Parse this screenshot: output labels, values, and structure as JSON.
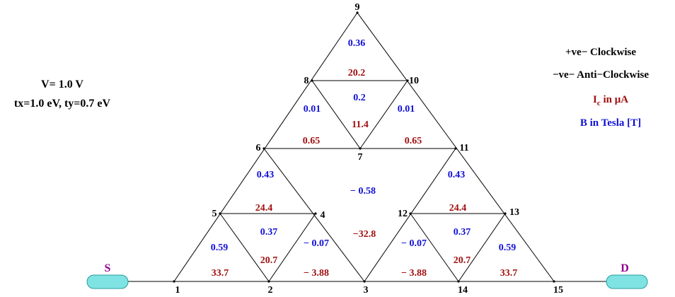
{
  "colors": {
    "current": "#a01010",
    "field": "#1010d8",
    "terminal_label": "#900090",
    "terminal_fill": "#7fe3e3",
    "terminal_stroke": "#2a9c9c",
    "edge": "#000000"
  },
  "params": {
    "voltage": "V= 1.0 V",
    "hopping": "tx=1.0 eV, ty=0.7 eV"
  },
  "legend": {
    "positive": "+ve− Clockwise",
    "negative": "−ve− Anti−Clockwise",
    "current_unit_prefix": "I",
    "current_unit_sub": "c",
    "current_unit_suffix": " in  μA",
    "field_unit": "B in Tesla [T]"
  },
  "terminals": {
    "source": "S",
    "drain": "D"
  },
  "nodes": [
    {
      "id": "1",
      "label": "1"
    },
    {
      "id": "2",
      "label": "2"
    },
    {
      "id": "3",
      "label": "3"
    },
    {
      "id": "4",
      "label": "4"
    },
    {
      "id": "5",
      "label": "5"
    },
    {
      "id": "6",
      "label": "6"
    },
    {
      "id": "7",
      "label": "7"
    },
    {
      "id": "8",
      "label": "8"
    },
    {
      "id": "9",
      "label": "9"
    },
    {
      "id": "10",
      "label": "10"
    },
    {
      "id": "11",
      "label": "11"
    },
    {
      "id": "12",
      "label": "12"
    },
    {
      "id": "13",
      "label": "13"
    },
    {
      "id": "14",
      "label": "14"
    },
    {
      "id": "15",
      "label": "15"
    }
  ],
  "edges": [
    [
      "1",
      "9"
    ],
    [
      "9",
      "15"
    ],
    [
      "1",
      "15"
    ],
    [
      "5",
      "4"
    ],
    [
      "4",
      "2"
    ],
    [
      "2",
      "5"
    ],
    [
      "6",
      "11"
    ],
    [
      "6",
      "3"
    ],
    [
      "3",
      "11"
    ],
    [
      "8",
      "10"
    ],
    [
      "10",
      "7"
    ],
    [
      "7",
      "8"
    ],
    [
      "12",
      "13"
    ],
    [
      "12",
      "14"
    ],
    [
      "14",
      "13"
    ]
  ],
  "loop_currents": [
    {
      "id": "c-left-bottom",
      "value": "33.7"
    },
    {
      "id": "c-left-inner",
      "value": "20.7"
    },
    {
      "id": "c-left-top",
      "value": "24.4"
    },
    {
      "id": "c-inner-left",
      "value": "− 3.88"
    },
    {
      "id": "c-center",
      "value": "−32.8"
    },
    {
      "id": "c-inner-right",
      "value": "− 3.88"
    },
    {
      "id": "c-right-inner",
      "value": "20.7"
    },
    {
      "id": "c-right-bottom",
      "value": "33.7"
    },
    {
      "id": "c-right-top",
      "value": "24.4"
    },
    {
      "id": "c-upper-left",
      "value": "0.65"
    },
    {
      "id": "c-upper-right",
      "value": "0.65"
    },
    {
      "id": "c-upper-center",
      "value": "11.4"
    },
    {
      "id": "c-apex",
      "value": "20.2"
    }
  ],
  "loop_fields": [
    {
      "id": "b-left-bottom",
      "value": "0.59"
    },
    {
      "id": "b-left-inner",
      "value": "0.37"
    },
    {
      "id": "b-inner-left",
      "value": "− 0.07"
    },
    {
      "id": "b-left-top",
      "value": "0.43"
    },
    {
      "id": "b-center",
      "value": "− 0.58"
    },
    {
      "id": "b-right-top",
      "value": "0.43"
    },
    {
      "id": "b-inner-right",
      "value": "− 0.07"
    },
    {
      "id": "b-right-inner",
      "value": "0.37"
    },
    {
      "id": "b-right-bottom",
      "value": "0.59"
    },
    {
      "id": "b-upper-left",
      "value": "0.01"
    },
    {
      "id": "b-upper-center",
      "value": "0.2"
    },
    {
      "id": "b-upper-right",
      "value": "0.01"
    },
    {
      "id": "b-apex",
      "value": "0.36"
    }
  ]
}
